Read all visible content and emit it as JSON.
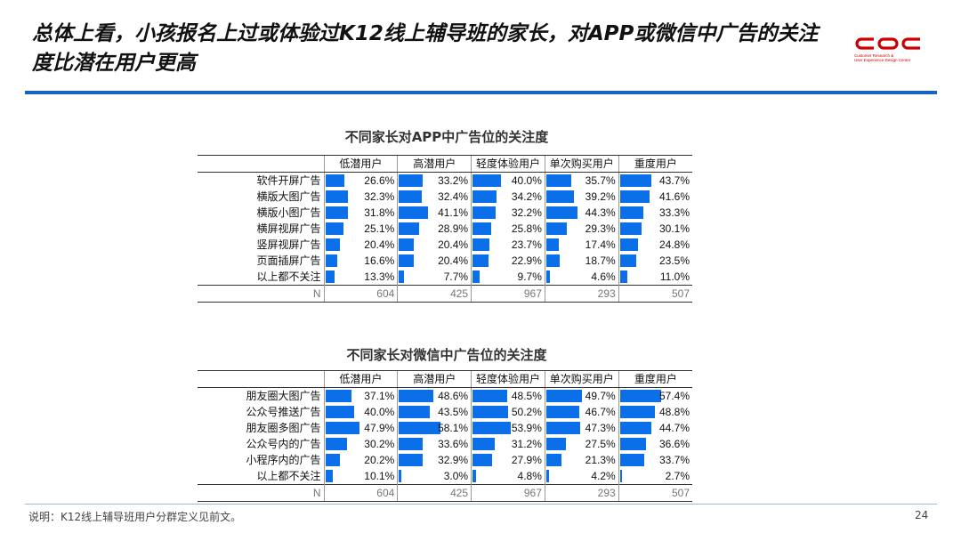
{
  "header": {
    "title": "总体上看，小孩报名上过或体验过K12线上辅导班的家长，对APP或微信中广告的关注度比潜在用户更高",
    "logo_text": "CDC",
    "logo_subtitle": "Customer Research & User Experience Design Center"
  },
  "colors": {
    "accent": "#1565c0",
    "bar": "#0a6fe8",
    "logo": "#cc0000"
  },
  "tables": [
    {
      "title": "不同家长对APP中广告位的关注度",
      "columns": [
        "低潜用户",
        "高潜用户",
        "轻度体验用户",
        "单次购买用户",
        "重度用户"
      ],
      "rows": [
        {
          "label": "软件开屏广告",
          "values": [
            "26.6%",
            "33.2%",
            "40.0%",
            "35.7%",
            "43.7%"
          ]
        },
        {
          "label": "横版大图广告",
          "values": [
            "32.3%",
            "32.4%",
            "34.2%",
            "39.2%",
            "41.6%"
          ]
        },
        {
          "label": "横版小图广告",
          "values": [
            "31.8%",
            "41.1%",
            "32.2%",
            "44.3%",
            "33.3%"
          ]
        },
        {
          "label": "横屏视屏广告",
          "values": [
            "25.1%",
            "28.9%",
            "25.8%",
            "29.3%",
            "30.1%"
          ]
        },
        {
          "label": "竖屏视屏广告",
          "values": [
            "20.4%",
            "20.4%",
            "23.7%",
            "17.4%",
            "24.8%"
          ]
        },
        {
          "label": "页面插屏广告",
          "values": [
            "16.6%",
            "20.4%",
            "22.9%",
            "18.7%",
            "23.5%"
          ]
        },
        {
          "label": "以上都不关注",
          "values": [
            "13.3%",
            "7.7%",
            "9.7%",
            "4.6%",
            "11.0%"
          ]
        }
      ],
      "n_label": "N",
      "n_values": [
        "604",
        "425",
        "967",
        "293",
        "507"
      ]
    },
    {
      "title": "不同家长对微信中广告位的关注度",
      "columns": [
        "低潜用户",
        "高潜用户",
        "轻度体验用户",
        "单次购买用户",
        "重度用户"
      ],
      "rows": [
        {
          "label": "朋友圈大图广告",
          "values": [
            "37.1%",
            "48.6%",
            "48.5%",
            "49.7%",
            "57.4%"
          ]
        },
        {
          "label": "公众号推送广告",
          "values": [
            "40.0%",
            "43.5%",
            "50.2%",
            "46.7%",
            "48.8%"
          ]
        },
        {
          "label": "朋友圈多图广告",
          "values": [
            "47.9%",
            "58.1%",
            "53.9%",
            "47.3%",
            "44.7%"
          ]
        },
        {
          "label": "公众号内的广告",
          "values": [
            "30.2%",
            "33.6%",
            "31.2%",
            "27.5%",
            "36.6%"
          ]
        },
        {
          "label": "小程序内的广告",
          "values": [
            "20.2%",
            "32.9%",
            "27.9%",
            "21.3%",
            "33.7%"
          ]
        },
        {
          "label": "以上都不关注",
          "values": [
            "10.1%",
            "3.0%",
            "4.8%",
            "4.2%",
            "2.7%"
          ]
        }
      ],
      "n_label": "N",
      "n_values": [
        "604",
        "425",
        "967",
        "293",
        "507"
      ]
    }
  ],
  "footer": {
    "note": "说明：K12线上辅导班用户分群定义见前文。",
    "page": "24"
  }
}
